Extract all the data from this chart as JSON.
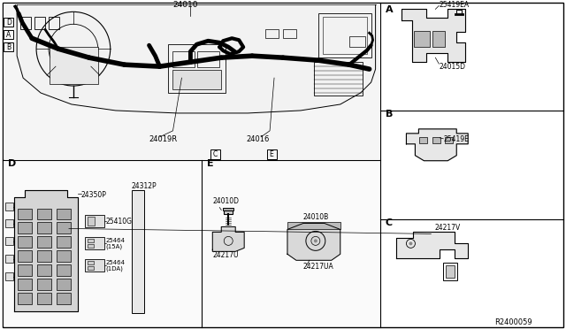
{
  "bg_color": "#ffffff",
  "line_color": "#000000",
  "text_color": "#000000",
  "fig_width": 6.4,
  "fig_height": 3.72,
  "label_A": "A",
  "label_B": "B",
  "label_C": "C",
  "label_D": "D",
  "label_E": "E",
  "ref_number": "R2400059",
  "main_top": "24010",
  "main_24019R": "24019R",
  "main_24016": "24016",
  "section_A_25419EA": "25419EA",
  "section_A_24015D": "24015D",
  "section_B_25419E": "25419E",
  "section_C_24217V": "24217V",
  "section_D_24350P": "24350P",
  "section_D_24312P": "24312P",
  "section_D_25410G": "25410G",
  "section_D_25464_15A": "25464\n(15A)",
  "section_D_25464_10A": "25464\n(1DA)",
  "section_E_24010D": "24010D",
  "section_E_24010B": "24010B",
  "section_E_24217U": "24217U",
  "section_E_24217UA": "24217UA"
}
